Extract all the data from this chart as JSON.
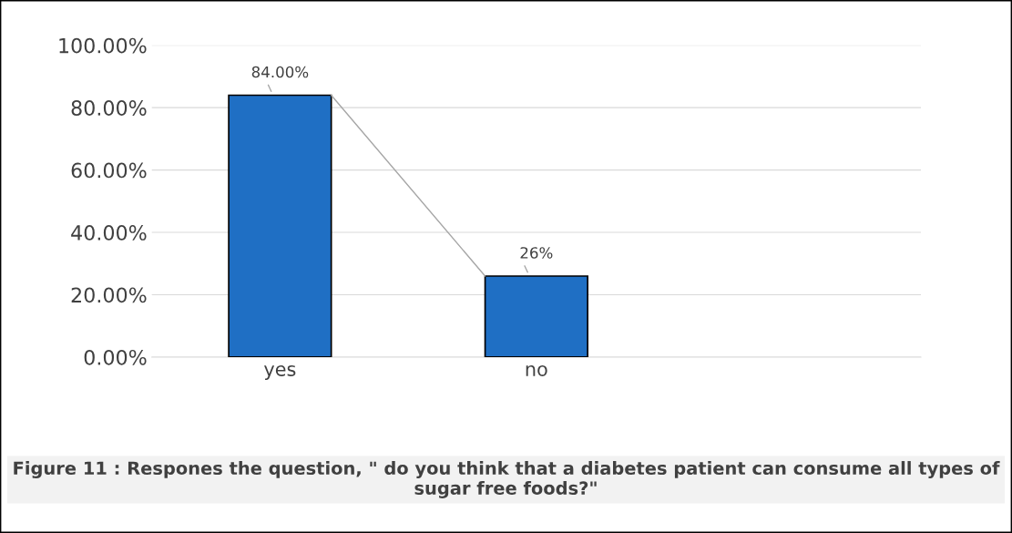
{
  "chart_data": {
    "type": "bar",
    "title": "Figure 11 : Respones the question, \" do you think that a diabetes patient can consume all types of sugar free foods?\"",
    "categories": [
      "yes",
      "no",
      null
    ],
    "series": [
      {
        "color": "#1f6fc4",
        "values": [
          84,
          26,
          null
        ],
        "value_labels": [
          "84.00%",
          "26%",
          null
        ]
      }
    ],
    "ylim": [
      0,
      100
    ],
    "yticks": [
      {
        "value": 0,
        "label": "0.00%"
      },
      {
        "value": 20,
        "label": "20.00%"
      },
      {
        "value": 40,
        "label": "40.00%"
      },
      {
        "value": 60,
        "label": "60.00%"
      },
      {
        "value": 80,
        "label": "80.00%"
      },
      {
        "value": 100,
        "label": "100.00%"
      }
    ],
    "grid": "y"
  }
}
